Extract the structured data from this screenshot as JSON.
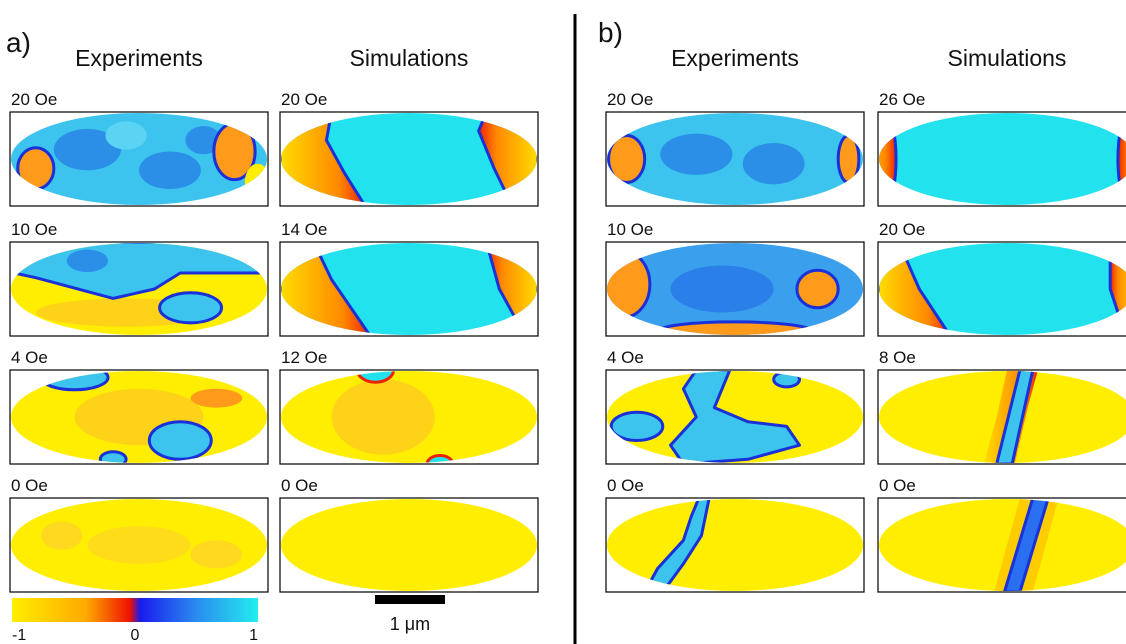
{
  "panels": [
    {
      "label": "a)",
      "columns": [
        "Experiments",
        "Simulations"
      ],
      "rows": [
        [
          "20 Oe",
          "20 Oe"
        ],
        [
          "10 Oe",
          "14 Oe"
        ],
        [
          "4 Oe",
          "12 Oe"
        ],
        [
          "0 Oe",
          "0 Oe"
        ]
      ]
    },
    {
      "label": "b)",
      "columns": [
        "Experiments",
        "Simulations"
      ],
      "rows": [
        [
          "20 Oe",
          "26 Oe"
        ],
        [
          "10 Oe",
          "20 Oe"
        ],
        [
          "4 Oe",
          "8 Oe"
        ],
        [
          "0 Oe",
          "0 Oe"
        ]
      ]
    }
  ],
  "colorbar": {
    "ticks": [
      -1,
      0,
      1
    ]
  },
  "scale_bar": "1 μm"
}
